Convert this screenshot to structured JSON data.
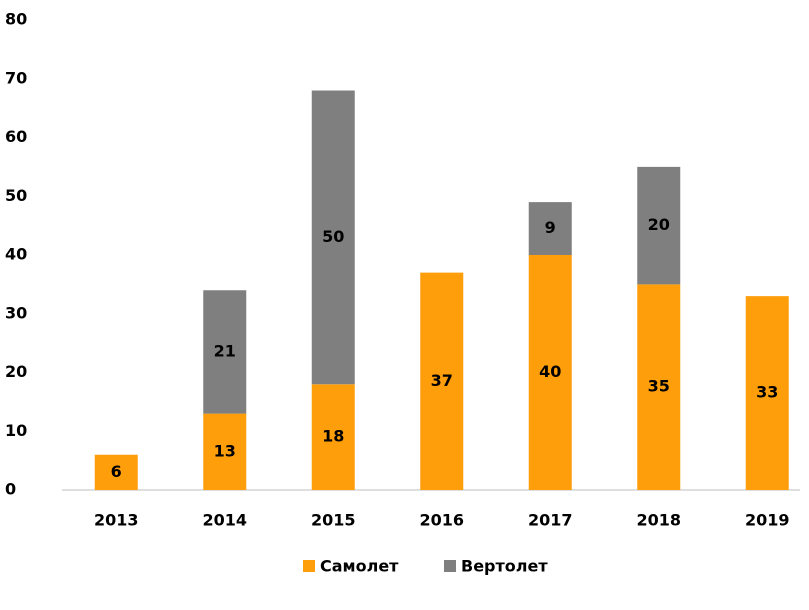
{
  "chart_data": {
    "type": "stacked_bar",
    "categories": [
      "2013",
      "2014",
      "2015",
      "2016",
      "2017",
      "2018",
      "2019"
    ],
    "series": [
      {
        "name": "Самолет",
        "color": "#ff9e0b",
        "values": [
          6,
          13,
          18,
          37,
          40,
          35,
          33
        ]
      },
      {
        "name": "Вертолет",
        "color": "#7f7f7f",
        "values": [
          null,
          21,
          50,
          null,
          9,
          20,
          null
        ]
      }
    ],
    "ylim": [
      0,
      80
    ],
    "yticks": [
      0,
      10,
      20,
      30,
      40,
      50,
      60,
      70,
      80
    ],
    "grid": false,
    "legend": "bottom"
  }
}
